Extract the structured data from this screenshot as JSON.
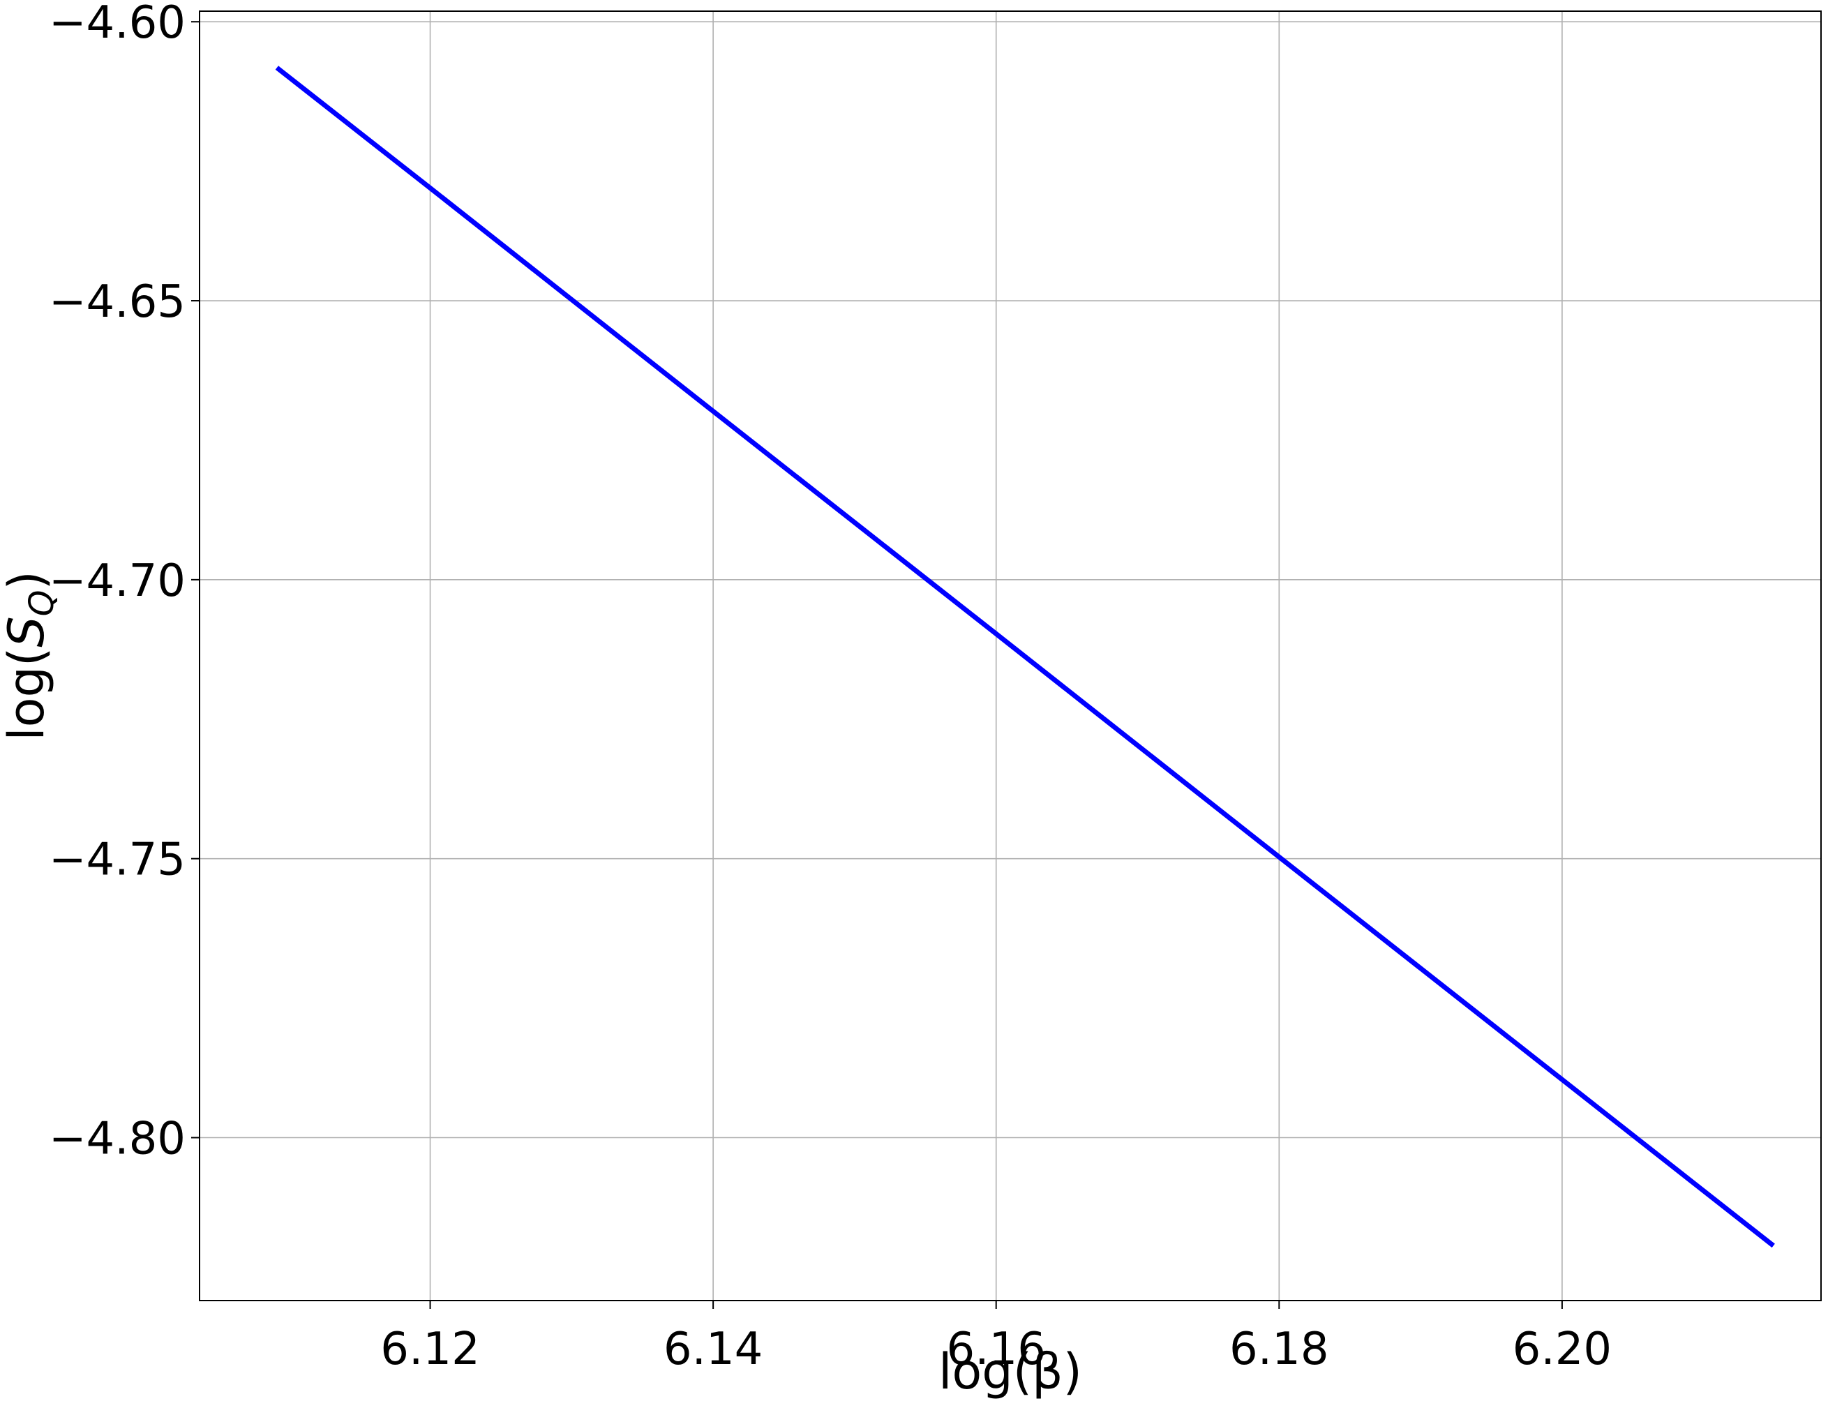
{
  "chart_data": {
    "type": "line",
    "xlabel": "log(β)",
    "ylabel_base": "log(",
    "ylabel_symbol": "S",
    "ylabel_subscript": "Q",
    "ylabel_close": ")",
    "xlim": [
      6.1037,
      6.2183
    ],
    "ylim": [
      -4.8292,
      -4.5981
    ],
    "xticks": [
      6.12,
      6.14,
      6.16,
      6.18,
      6.2
    ],
    "xtick_labels": [
      "6.12",
      "6.14",
      "6.16",
      "6.18",
      "6.20"
    ],
    "yticks": [
      -4.6,
      -4.65,
      -4.7,
      -4.75,
      -4.8
    ],
    "ytick_labels": [
      "−4.60",
      "−4.65",
      "−4.70",
      "−4.75",
      "−4.80"
    ],
    "grid": true,
    "series": [
      {
        "color": "#0000ff",
        "x": [
          6.1093,
          6.12,
          6.14,
          6.16,
          6.18,
          6.2,
          6.2148
        ],
        "y": [
          -4.6085,
          -4.6298,
          -4.6698,
          -4.7097,
          -4.7497,
          -4.7896,
          -4.8191
        ]
      }
    ]
  }
}
